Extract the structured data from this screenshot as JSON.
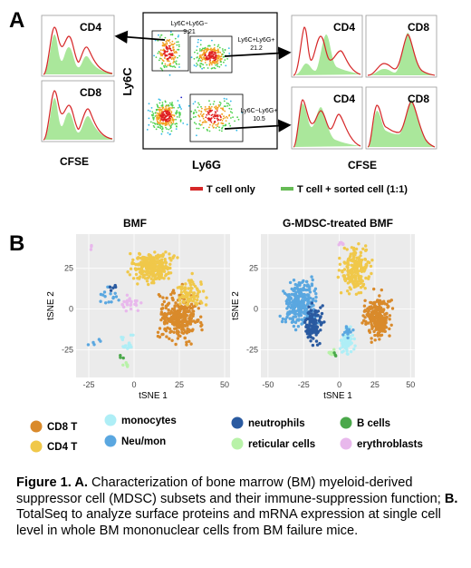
{
  "panel_a": {
    "label": "A",
    "left_hist": {
      "top_label": "CD4",
      "bottom_label": "CD8",
      "xlabel": "CFSE"
    },
    "flow_plot": {
      "ylabel": "Ly6C",
      "xlabel": "Ly6G",
      "gates": [
        {
          "name": "Ly6C+Ly6G−",
          "value": "9.21"
        },
        {
          "name": "Ly6C+Ly6G+",
          "value": "21.2"
        },
        {
          "name": "Ly6C−Ly6G+",
          "value": "10.5"
        }
      ]
    },
    "right_hist": {
      "labels": [
        "CD4",
        "CD8",
        "CD4",
        "CD8"
      ],
      "xlabel": "CFSE"
    },
    "legend": [
      {
        "label": "T cell only",
        "color": "#d62728"
      },
      {
        "label": "T cell + sorted cell (1:1)",
        "color": "#66bb55"
      }
    ]
  },
  "panel_b": {
    "label": "B",
    "chart_data": [
      {
        "type": "scatter",
        "title": "BMF",
        "xlabel": "tSNE 1",
        "ylabel": "tSNE 2",
        "xticks": [
          -25,
          0,
          25,
          50
        ],
        "yticks": [
          25,
          0,
          -25
        ],
        "xlim": [
          -32,
          53
        ],
        "ylim": [
          -42,
          46
        ],
        "grid": true
      },
      {
        "type": "scatter",
        "title": "G-MDSC-treated BMF",
        "xlabel": "tSNE 1",
        "ylabel": "tSNE 2",
        "xticks": [
          -50,
          -25,
          0,
          25,
          50
        ],
        "yticks": [
          25,
          0,
          -25
        ],
        "xlim": [
          -55,
          53
        ],
        "ylim": [
          -42,
          46
        ],
        "grid": true
      }
    ],
    "legend": [
      {
        "label": "CD8 T",
        "color": "#d98a2b"
      },
      {
        "label": "CD4 T",
        "color": "#f0c84a"
      },
      {
        "label": "monocytes",
        "color": "#aeeef6"
      },
      {
        "label": "Neu/mon",
        "color": "#5aa7e0"
      },
      {
        "label": "neutrophils",
        "color": "#2a5aa0"
      },
      {
        "label": "reticular cells",
        "color": "#b8f2a8"
      },
      {
        "label": "B cells",
        "color": "#4aa84a"
      },
      {
        "label": "erythroblasts",
        "color": "#e8b8ec"
      }
    ]
  },
  "caption": {
    "heading": "Figure 1. A.",
    "text_a": " Characterization of bone marrow (BM) myeloid-derived suppressor cell (MDSC) subsets and their immune-suppression function; ",
    "label_b": "B.",
    "text_b": " TotalSeq to analyze surface proteins and mRNA expression at single cell level in whole BM mononuclear cells from BM failure mice."
  }
}
